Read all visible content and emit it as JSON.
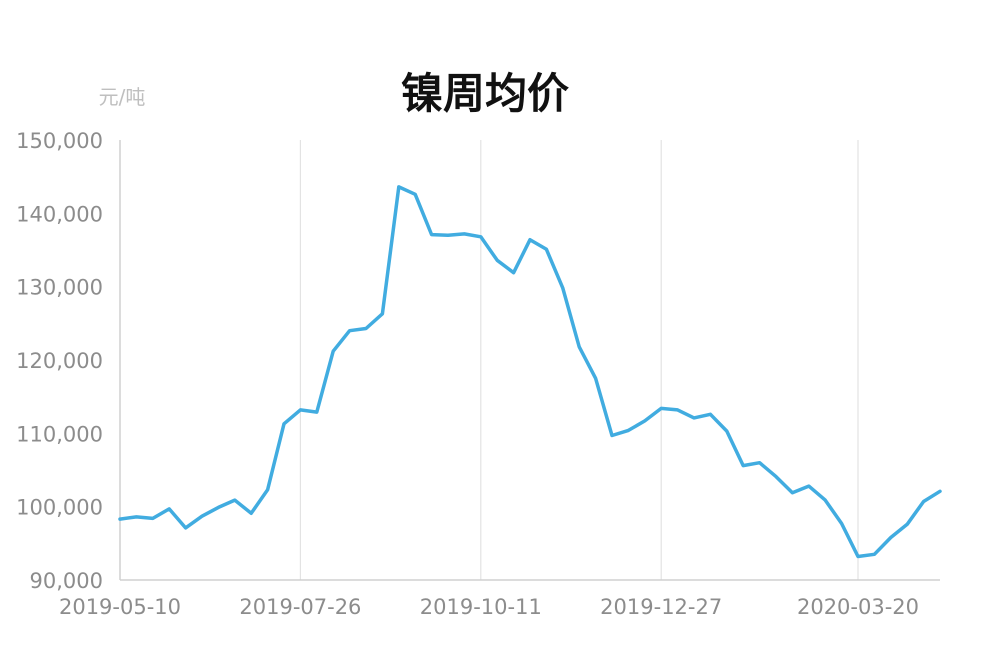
{
  "chart_data": {
    "type": "line",
    "title": "镍周均价",
    "ylabel": "元/吨",
    "xlabel": "",
    "ylim": [
      90000,
      150000
    ],
    "y_ticks": [
      90000,
      100000,
      110000,
      120000,
      130000,
      140000,
      150000
    ],
    "y_tick_labels": [
      "90,000",
      "100,000",
      "110,000",
      "120,000",
      "130,000",
      "140,000",
      "150,000"
    ],
    "x_tick_labels": [
      "2019-05-10",
      "2019-07-26",
      "2019-10-11",
      "2019-12-27",
      "2020-03-20"
    ],
    "grid": "vertical",
    "line_color": "#41ace0",
    "series": [
      {
        "x": [
          "2019-05-10",
          "2019-05-17",
          "2019-05-24",
          "2019-05-31",
          "2019-06-07",
          "2019-06-14",
          "2019-06-21",
          "2019-06-28",
          "2019-07-05",
          "2019-07-12",
          "2019-07-19",
          "2019-07-26",
          "2019-08-02",
          "2019-08-09",
          "2019-08-16",
          "2019-08-23",
          "2019-08-30",
          "2019-09-06",
          "2019-09-13",
          "2019-09-20",
          "2019-09-27",
          "2019-10-04",
          "2019-10-11",
          "2019-10-18",
          "2019-10-25",
          "2019-11-01",
          "2019-11-08",
          "2019-11-15",
          "2019-11-22",
          "2019-11-29",
          "2019-12-06",
          "2019-12-13",
          "2019-12-20",
          "2019-12-27",
          "2020-01-03",
          "2020-01-10",
          "2020-01-17",
          "2020-01-24",
          "2020-01-31",
          "2020-02-07",
          "2020-02-14",
          "2020-02-21",
          "2020-02-28",
          "2020-03-06",
          "2020-03-13",
          "2020-03-20",
          "2020-03-27",
          "2020-04-03",
          "2020-04-10",
          "2020-04-17",
          "2020-04-24"
        ],
        "values": [
          98300,
          98600,
          98400,
          99700,
          97100,
          98700,
          99900,
          100900,
          99100,
          102300,
          111300,
          113200,
          112900,
          121200,
          124000,
          124300,
          126300,
          143600,
          142600,
          137100,
          137000,
          137200,
          136800,
          133600,
          131900,
          136400,
          135100,
          129800,
          121800,
          117500,
          109700,
          110400,
          111700,
          113400,
          113200,
          112100,
          112600,
          110300,
          105600,
          106000,
          104100,
          101900,
          102800,
          100900,
          97700,
          93200,
          93500,
          95800,
          97600,
          100700,
          102100
        ]
      }
    ]
  }
}
